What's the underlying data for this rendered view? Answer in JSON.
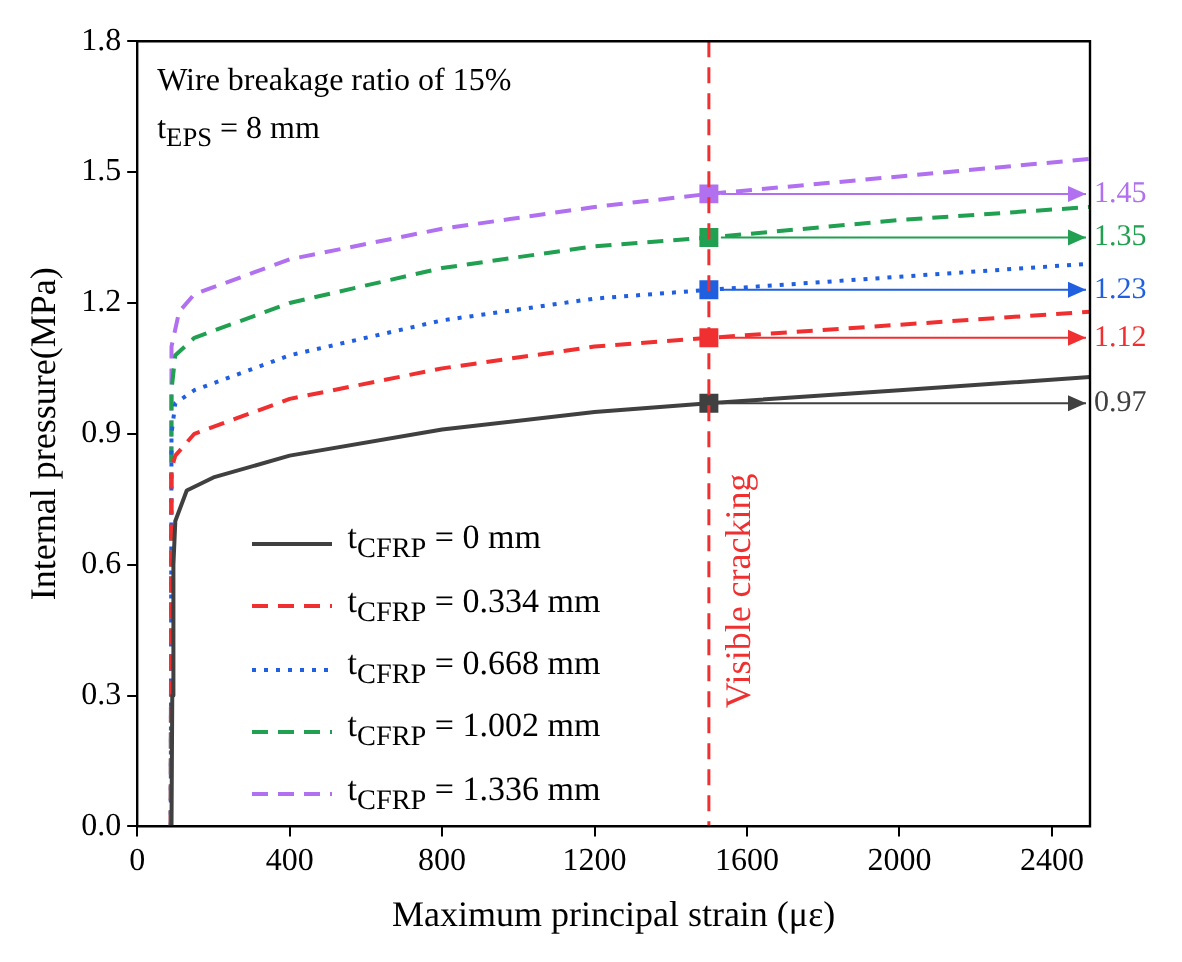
{
  "chart_data": {
    "type": "line",
    "xlabel": "Maximum principal strain (με)",
    "ylabel": "Internal pressure(MPa)",
    "annotations": [
      "Wire breakage ratio of 15%",
      "t$_{EPS}$ = 8 mm"
    ],
    "xlim": [
      0,
      2500
    ],
    "xticks": [
      0,
      400,
      800,
      1200,
      1600,
      2000,
      2400
    ],
    "ylim": [
      0,
      1.8
    ],
    "yticks": [
      {
        "value": 0,
        "label": "0.0"
      },
      0.3,
      0.6,
      0.9,
      1.2,
      1.5,
      1.8
    ],
    "grid": false,
    "legend": "bottom left",
    "marker": "none",
    "ref_lines": [
      {
        "axis": "x",
        "value": 1500,
        "label": "Visible cracking",
        "color": "#f03030",
        "line_style": "dashed"
      }
    ],
    "series": [
      {
        "name": "t$_{CFRP}$ = 0 mm",
        "color": "#404040",
        "line_style": "solid",
        "x": [
          90,
          92,
          95,
          100,
          130,
          200,
          400,
          800,
          1200,
          1500,
          2000,
          2500
        ],
        "values": [
          0,
          0.3,
          0.6,
          0.7,
          0.77,
          0.8,
          0.85,
          0.91,
          0.95,
          0.97,
          1.0,
          1.03
        ]
      },
      {
        "name": "t$_{CFRP}$ = 0.334 mm",
        "color": "#f03030",
        "line_style": "dashed",
        "x": [
          88,
          90,
          100,
          150,
          400,
          800,
          1200,
          1500,
          2000,
          2500
        ],
        "values": [
          0,
          0.82,
          0.85,
          0.9,
          0.98,
          1.05,
          1.1,
          1.12,
          1.15,
          1.18
        ]
      },
      {
        "name": "t$_{CFRP}$ = 0.668 mm",
        "color": "#1f5fe0",
        "line_style": "dotted",
        "x": [
          88,
          90,
          100,
          150,
          400,
          800,
          1200,
          1500,
          2000,
          2500
        ],
        "values": [
          0,
          0.9,
          0.97,
          1.0,
          1.08,
          1.16,
          1.21,
          1.23,
          1.26,
          1.29
        ]
      },
      {
        "name": "t$_{CFRP}$ = 1.002 mm",
        "color": "#20a050",
        "line_style": "dashed",
        "x": [
          88,
          90,
          100,
          150,
          400,
          800,
          1200,
          1500,
          2000,
          2500
        ],
        "values": [
          0,
          1.0,
          1.08,
          1.12,
          1.2,
          1.28,
          1.33,
          1.35,
          1.39,
          1.42
        ]
      },
      {
        "name": "t$_{CFRP}$ = 1.336 mm",
        "color": "#b070f0",
        "line_style": "dashed",
        "x": [
          88,
          90,
          110,
          150,
          400,
          800,
          1200,
          1500,
          2000,
          2500
        ],
        "values": [
          0,
          1.1,
          1.18,
          1.22,
          1.3,
          1.37,
          1.42,
          1.45,
          1.49,
          1.53
        ]
      },
      {
        "type": "scatter",
        "marker": "square",
        "x": [
          1500,
          1500,
          1500,
          1500,
          1500
        ],
        "values": [
          0.97,
          1.12,
          1.23,
          1.35,
          1.45
        ],
        "colors": [
          "#404040",
          "#f03030",
          "#1f5fe0",
          "#20a050",
          "#b070f0"
        ],
        "value_labels": [
          "0.97",
          "1.12",
          "1.23",
          "1.35",
          "1.45"
        ]
      }
    ]
  }
}
